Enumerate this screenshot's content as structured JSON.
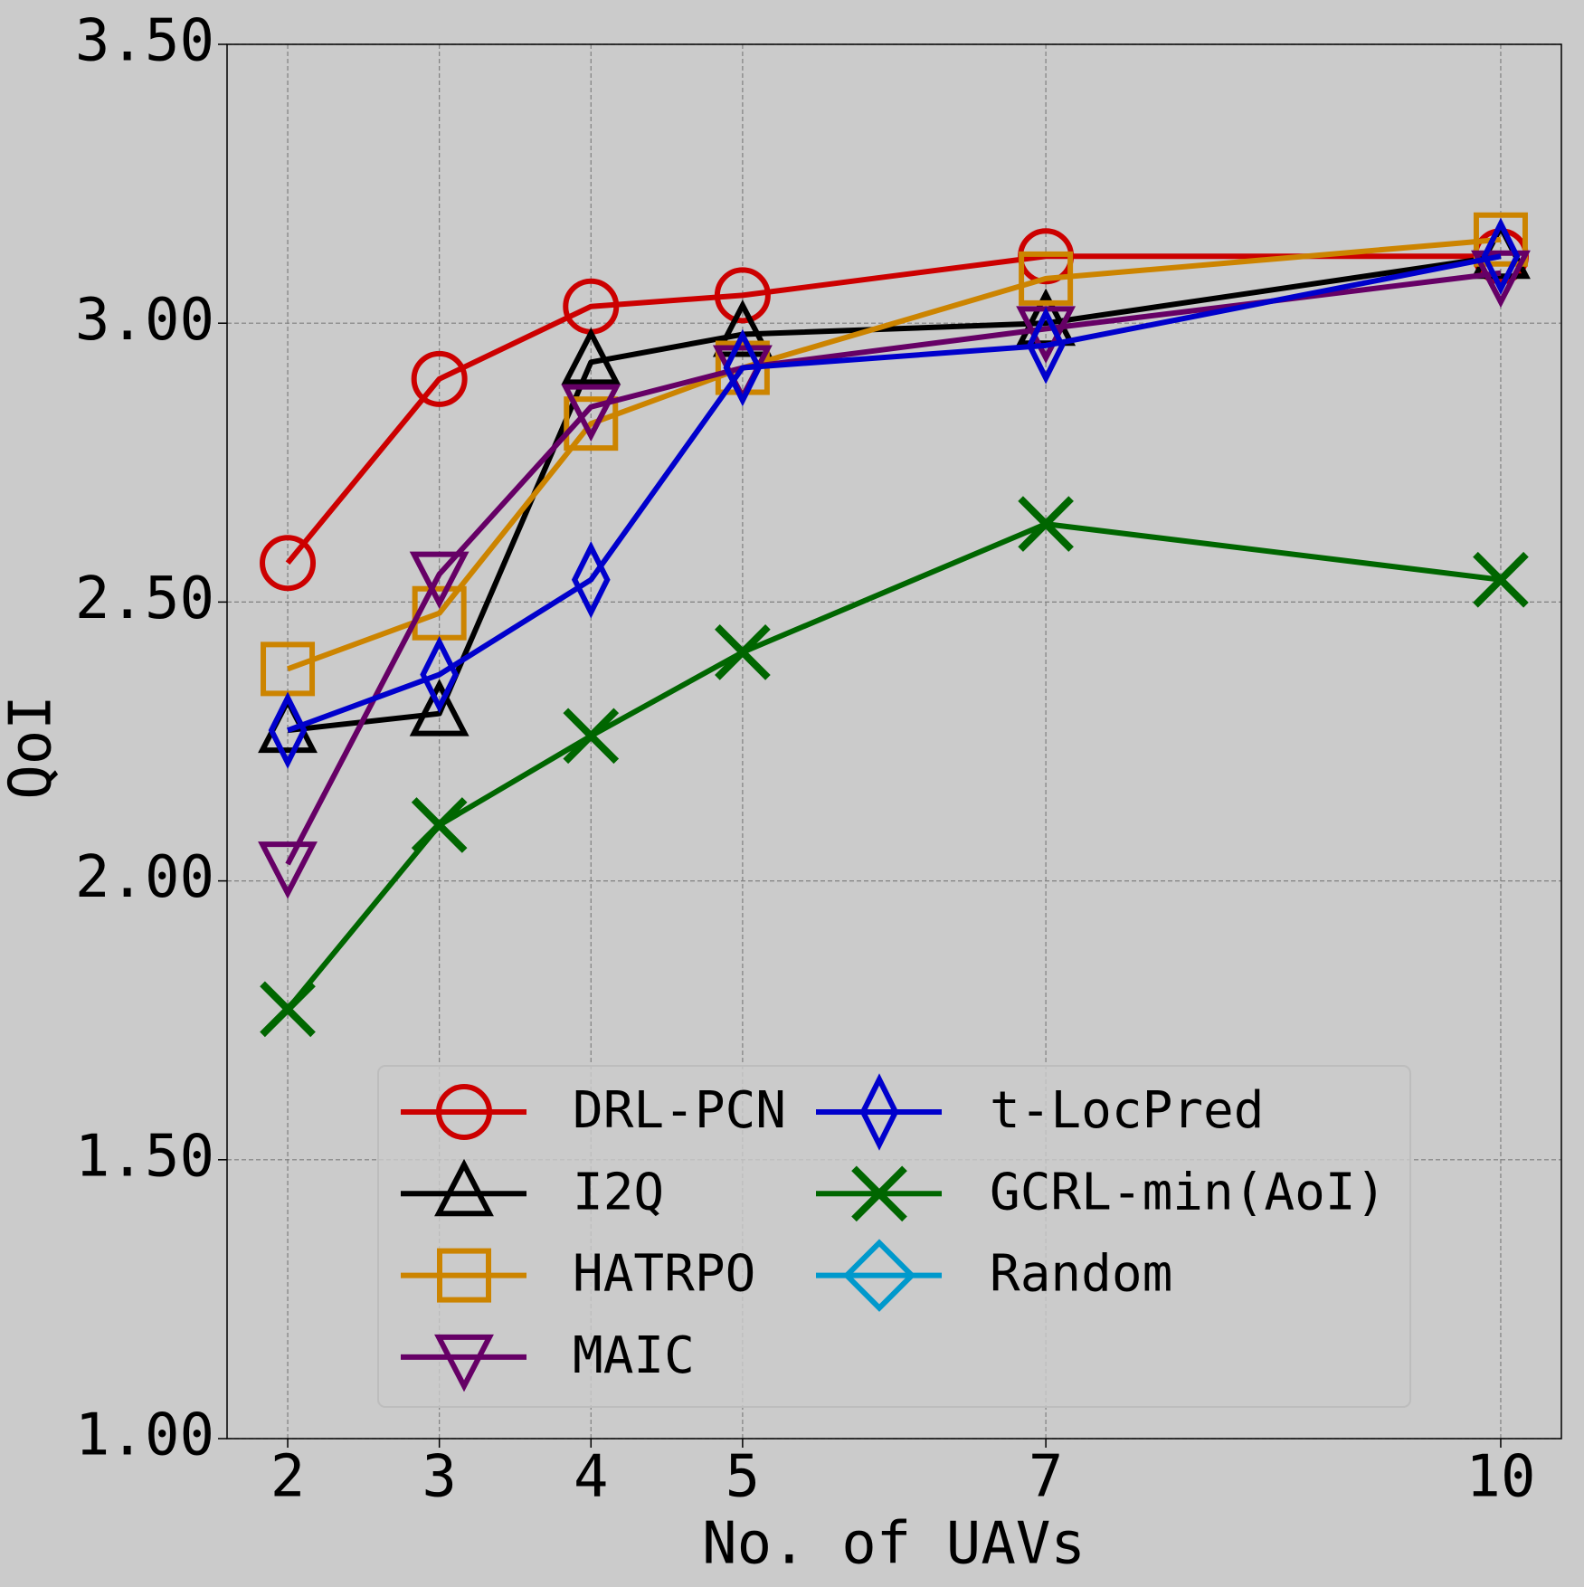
{
  "chart_data": {
    "type": "line",
    "xlabel": "No. of UAVs",
    "ylabel": "QoI",
    "x": [
      2,
      3,
      4,
      5,
      7,
      10
    ],
    "xlim": [
      1.6,
      10.4
    ],
    "xticks": [
      2,
      3,
      4,
      5,
      7,
      10
    ],
    "ylim": [
      1.0,
      3.5
    ],
    "yticks": [
      {
        "value": 1.0,
        "label": "1.00"
      },
      {
        "value": 1.5,
        "label": "1.50"
      },
      {
        "value": 2.0,
        "label": "2.00"
      },
      {
        "value": 2.5,
        "label": "2.50"
      },
      {
        "value": 3.0,
        "label": "3.00"
      },
      {
        "value": 3.5,
        "label": "3.50"
      }
    ],
    "grid": true,
    "legend": "lower center",
    "series": [
      {
        "name": "DRL-PCN",
        "color": "#cc0000",
        "marker": "circle",
        "values": [
          2.57,
          2.9,
          3.03,
          3.05,
          3.12,
          3.12
        ]
      },
      {
        "name": "I2Q",
        "color": "#000000",
        "marker": "triangle-up",
        "values": [
          2.27,
          2.3,
          2.93,
          2.98,
          3.0,
          3.12
        ]
      },
      {
        "name": "HATRPO",
        "color": "#cc8400",
        "marker": "square",
        "values": [
          2.38,
          2.48,
          2.82,
          2.92,
          3.08,
          3.15
        ]
      },
      {
        "name": "MAIC",
        "color": "#660066",
        "marker": "triangle-down",
        "values": [
          2.03,
          2.55,
          2.85,
          2.92,
          2.99,
          3.09
        ]
      },
      {
        "name": "t-LocPred",
        "color": "#0000cc",
        "marker": "thin-diamond",
        "values": [
          2.27,
          2.37,
          2.54,
          2.92,
          2.96,
          3.12
        ]
      },
      {
        "name": "GCRL-min(AoI)",
        "color": "#006600",
        "marker": "x",
        "values": [
          1.77,
          2.1,
          2.26,
          2.41,
          2.64,
          2.54
        ]
      },
      {
        "name": "Random",
        "color": "#0099cc",
        "marker": "diamond",
        "values": [
          null,
          null,
          null,
          null,
          null,
          null
        ]
      }
    ]
  }
}
